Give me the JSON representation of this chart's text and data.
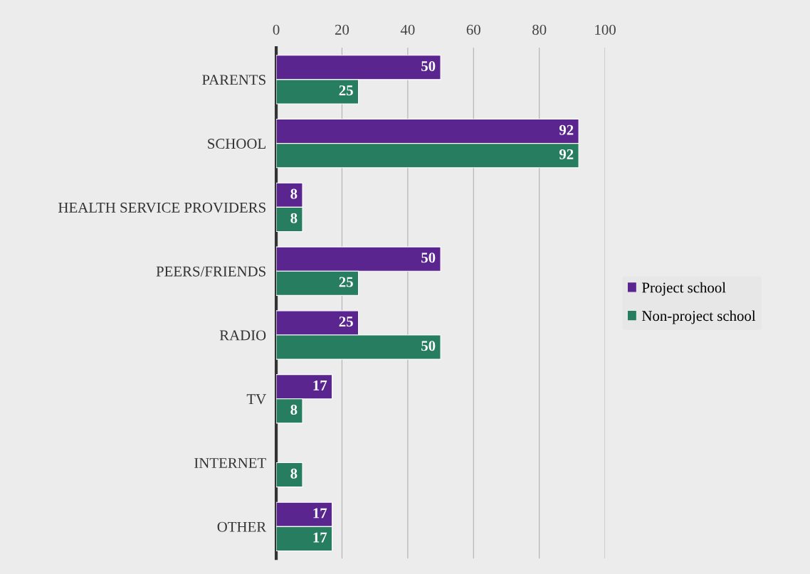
{
  "chart_data": {
    "type": "bar",
    "orientation": "horizontal",
    "categories": [
      "PARENTS",
      "SCHOOL",
      "HEALTH SERVICE PROVIDERS",
      "PEERS/FRIENDS",
      "RADIO",
      "TV",
      "INTERNET",
      "OTHER"
    ],
    "series": [
      {
        "name": "Project school",
        "color": "#5b2590",
        "values": [
          50,
          92,
          8,
          50,
          25,
          17,
          null,
          17
        ]
      },
      {
        "name": "Non-project school",
        "color": "#267d5f",
        "values": [
          25,
          92,
          8,
          25,
          50,
          8,
          8,
          17
        ]
      }
    ],
    "xlim": [
      0,
      100
    ],
    "xticks": [
      0,
      20,
      40,
      60,
      80,
      100
    ],
    "grid": "x",
    "legend": "right",
    "data_labels": true
  }
}
